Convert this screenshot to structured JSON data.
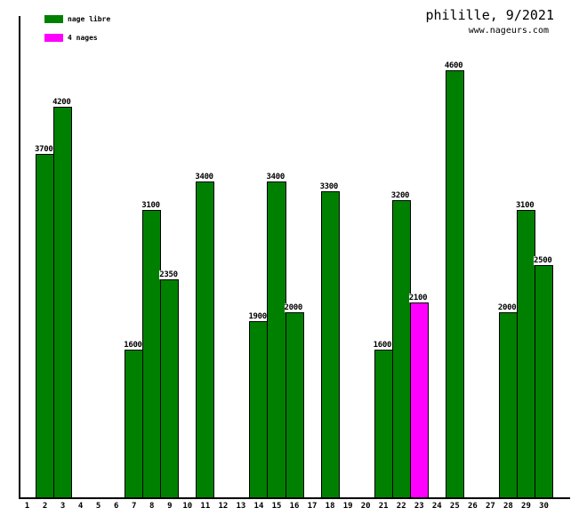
{
  "header": {
    "title": "philille, 9/2021",
    "watermark": "www.nageurs.com"
  },
  "legend": [
    {
      "label": "nage libre",
      "color": "#008000"
    },
    {
      "label": "4 nages",
      "color": "#ff00ff"
    }
  ],
  "chart_data": {
    "type": "bar",
    "title": "philille, 9/2021",
    "xlabel": "",
    "ylabel": "",
    "grid": false,
    "legend_position": "top-left",
    "ylim": [
      0,
      5180
    ],
    "categories": [
      "1",
      "2",
      "3",
      "4",
      "5",
      "6",
      "7",
      "8",
      "9",
      "10",
      "11",
      "12",
      "13",
      "14",
      "15",
      "16",
      "17",
      "18",
      "19",
      "20",
      "21",
      "22",
      "23",
      "24",
      "25",
      "26",
      "27",
      "28",
      "29",
      "30"
    ],
    "series": [
      {
        "name": "nage libre",
        "color": "#008000",
        "data": [
          {
            "x": 2,
            "y": 3700
          },
          {
            "x": 3,
            "y": 4200
          },
          {
            "x": 7,
            "y": 1600
          },
          {
            "x": 8,
            "y": 3100
          },
          {
            "x": 9,
            "y": 2350
          },
          {
            "x": 11,
            "y": 3400
          },
          {
            "x": 14,
            "y": 1900
          },
          {
            "x": 15,
            "y": 3400
          },
          {
            "x": 16,
            "y": 2000
          },
          {
            "x": 18,
            "y": 3300
          },
          {
            "x": 21,
            "y": 1600
          },
          {
            "x": 22,
            "y": 3200
          },
          {
            "x": 25,
            "y": 4600
          },
          {
            "x": 28,
            "y": 2000
          },
          {
            "x": 29,
            "y": 3100
          },
          {
            "x": 30,
            "y": 2500
          }
        ]
      },
      {
        "name": "4 nages",
        "color": "#ff00ff",
        "data": [
          {
            "x": 23,
            "y": 2100
          }
        ]
      }
    ]
  }
}
